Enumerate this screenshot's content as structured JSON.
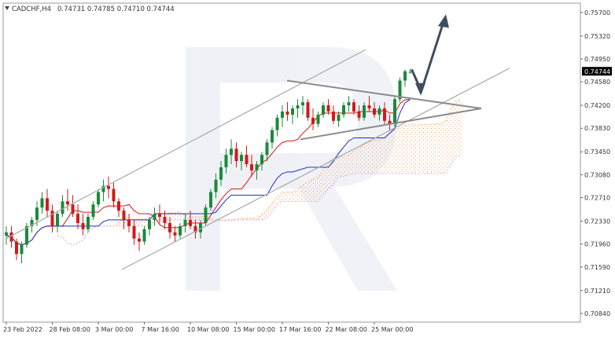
{
  "header": {
    "symbol": "CADCHF,H4",
    "ohlc": "0.74731 0.74785 0.74710 0.74744"
  },
  "chart_data": {
    "type": "candlestick",
    "symbol": "CADCHF",
    "timeframe": "H4",
    "ohlc": {
      "open": 0.74731,
      "high": 0.74785,
      "low": 0.7471,
      "close": 0.74744
    },
    "current_price_label": "0.74744",
    "ylim": [
      0.707,
      0.7585
    ],
    "y_ticks": [
      "0.75700",
      "0.75320",
      "0.74950",
      "0.74580",
      "0.74200",
      "0.73830",
      "0.73450",
      "0.73080",
      "0.72710",
      "0.72330",
      "0.71960",
      "0.71590",
      "0.71210",
      "0.70840"
    ],
    "x_ticks": [
      "23 Feb 2022",
      "28 Feb 08:00",
      "3 Mar 00:00",
      "7 Mar 16:00",
      "10 Mar 08:00",
      "15 Mar 00:00",
      "17 Mar 16:00",
      "22 Mar 08:00",
      "25 Mar 00:00"
    ],
    "candles": [
      [
        0.721,
        0.7225,
        0.7195,
        0.7215
      ],
      [
        0.7215,
        0.7225,
        0.719,
        0.72
      ],
      [
        0.72,
        0.7205,
        0.717,
        0.718
      ],
      [
        0.718,
        0.72,
        0.7165,
        0.7195
      ],
      [
        0.7195,
        0.723,
        0.719,
        0.7225
      ],
      [
        0.7225,
        0.724,
        0.7215,
        0.7235
      ],
      [
        0.7235,
        0.7265,
        0.7225,
        0.7255
      ],
      [
        0.7255,
        0.728,
        0.7245,
        0.727
      ],
      [
        0.727,
        0.7285,
        0.724,
        0.725
      ],
      [
        0.725,
        0.726,
        0.7215,
        0.7225
      ],
      [
        0.7225,
        0.725,
        0.7215,
        0.7245
      ],
      [
        0.7245,
        0.7275,
        0.724,
        0.7265
      ],
      [
        0.7265,
        0.7285,
        0.725,
        0.726
      ],
      [
        0.726,
        0.7275,
        0.724,
        0.7245
      ],
      [
        0.7245,
        0.726,
        0.722,
        0.723
      ],
      [
        0.723,
        0.7245,
        0.721,
        0.722
      ],
      [
        0.722,
        0.7245,
        0.7215,
        0.724
      ],
      [
        0.724,
        0.7265,
        0.7235,
        0.726
      ],
      [
        0.726,
        0.7285,
        0.7255,
        0.728
      ],
      [
        0.728,
        0.73,
        0.7265,
        0.729
      ],
      [
        0.729,
        0.7305,
        0.727,
        0.7285
      ],
      [
        0.7285,
        0.7295,
        0.7255,
        0.7265
      ],
      [
        0.7265,
        0.727,
        0.724,
        0.725
      ],
      [
        0.725,
        0.7255,
        0.722,
        0.7235
      ],
      [
        0.7235,
        0.7245,
        0.7215,
        0.7225
      ],
      [
        0.7225,
        0.7235,
        0.7195,
        0.7205
      ],
      [
        0.7205,
        0.7215,
        0.7185,
        0.72
      ],
      [
        0.72,
        0.7225,
        0.7195,
        0.722
      ],
      [
        0.722,
        0.724,
        0.721,
        0.7235
      ],
      [
        0.7235,
        0.7255,
        0.7225,
        0.7245
      ],
      [
        0.7245,
        0.726,
        0.723,
        0.724
      ],
      [
        0.724,
        0.725,
        0.722,
        0.723
      ],
      [
        0.723,
        0.724,
        0.7205,
        0.7215
      ],
      [
        0.7215,
        0.7225,
        0.72,
        0.721
      ],
      [
        0.721,
        0.723,
        0.7205,
        0.7225
      ],
      [
        0.7225,
        0.7245,
        0.7215,
        0.7235
      ],
      [
        0.7235,
        0.725,
        0.722,
        0.7225
      ],
      [
        0.7225,
        0.7235,
        0.7205,
        0.7215
      ],
      [
        0.7215,
        0.7235,
        0.7205,
        0.723
      ],
      [
        0.723,
        0.726,
        0.7225,
        0.7255
      ],
      [
        0.7255,
        0.7285,
        0.725,
        0.728
      ],
      [
        0.728,
        0.731,
        0.727,
        0.73
      ],
      [
        0.73,
        0.733,
        0.729,
        0.732
      ],
      [
        0.732,
        0.735,
        0.731,
        0.734
      ],
      [
        0.734,
        0.7365,
        0.7325,
        0.735
      ],
      [
        0.735,
        0.736,
        0.732,
        0.733
      ],
      [
        0.733,
        0.7345,
        0.7315,
        0.734
      ],
      [
        0.734,
        0.7355,
        0.732,
        0.7325
      ],
      [
        0.7325,
        0.734,
        0.7305,
        0.7315
      ],
      [
        0.7315,
        0.733,
        0.73,
        0.7325
      ],
      [
        0.7325,
        0.7345,
        0.7315,
        0.734
      ],
      [
        0.734,
        0.7365,
        0.733,
        0.736
      ],
      [
        0.736,
        0.7385,
        0.735,
        0.738
      ],
      [
        0.738,
        0.7405,
        0.737,
        0.74
      ],
      [
        0.74,
        0.742,
        0.7385,
        0.741
      ],
      [
        0.741,
        0.7425,
        0.7395,
        0.7405
      ],
      [
        0.7405,
        0.742,
        0.739,
        0.7415
      ],
      [
        0.7415,
        0.743,
        0.74,
        0.742
      ],
      [
        0.742,
        0.7435,
        0.7405,
        0.7425
      ],
      [
        0.7425,
        0.743,
        0.7395,
        0.74
      ],
      [
        0.74,
        0.7415,
        0.738,
        0.739
      ],
      [
        0.739,
        0.741,
        0.7385,
        0.7405
      ],
      [
        0.7405,
        0.7425,
        0.74,
        0.742
      ],
      [
        0.742,
        0.743,
        0.7405,
        0.741
      ],
      [
        0.741,
        0.742,
        0.739,
        0.7395
      ],
      [
        0.7395,
        0.741,
        0.7385,
        0.7405
      ],
      [
        0.7405,
        0.7425,
        0.74,
        0.742
      ],
      [
        0.742,
        0.7435,
        0.741,
        0.7425
      ],
      [
        0.7425,
        0.743,
        0.7405,
        0.741
      ],
      [
        0.741,
        0.742,
        0.7395,
        0.74
      ],
      [
        0.74,
        0.7425,
        0.7395,
        0.742
      ],
      [
        0.742,
        0.7435,
        0.741,
        0.7415
      ],
      [
        0.7415,
        0.7425,
        0.74,
        0.7405
      ],
      [
        0.7405,
        0.742,
        0.7395,
        0.7415
      ],
      [
        0.7415,
        0.7425,
        0.739,
        0.7395
      ],
      [
        0.7395,
        0.7405,
        0.738,
        0.739
      ],
      [
        0.739,
        0.7435,
        0.7385,
        0.743
      ],
      [
        0.743,
        0.7465,
        0.7425,
        0.746
      ],
      [
        0.746,
        0.7478,
        0.745,
        0.7475
      ],
      [
        0.7473,
        0.7479,
        0.7471,
        0.7474
      ]
    ]
  }
}
